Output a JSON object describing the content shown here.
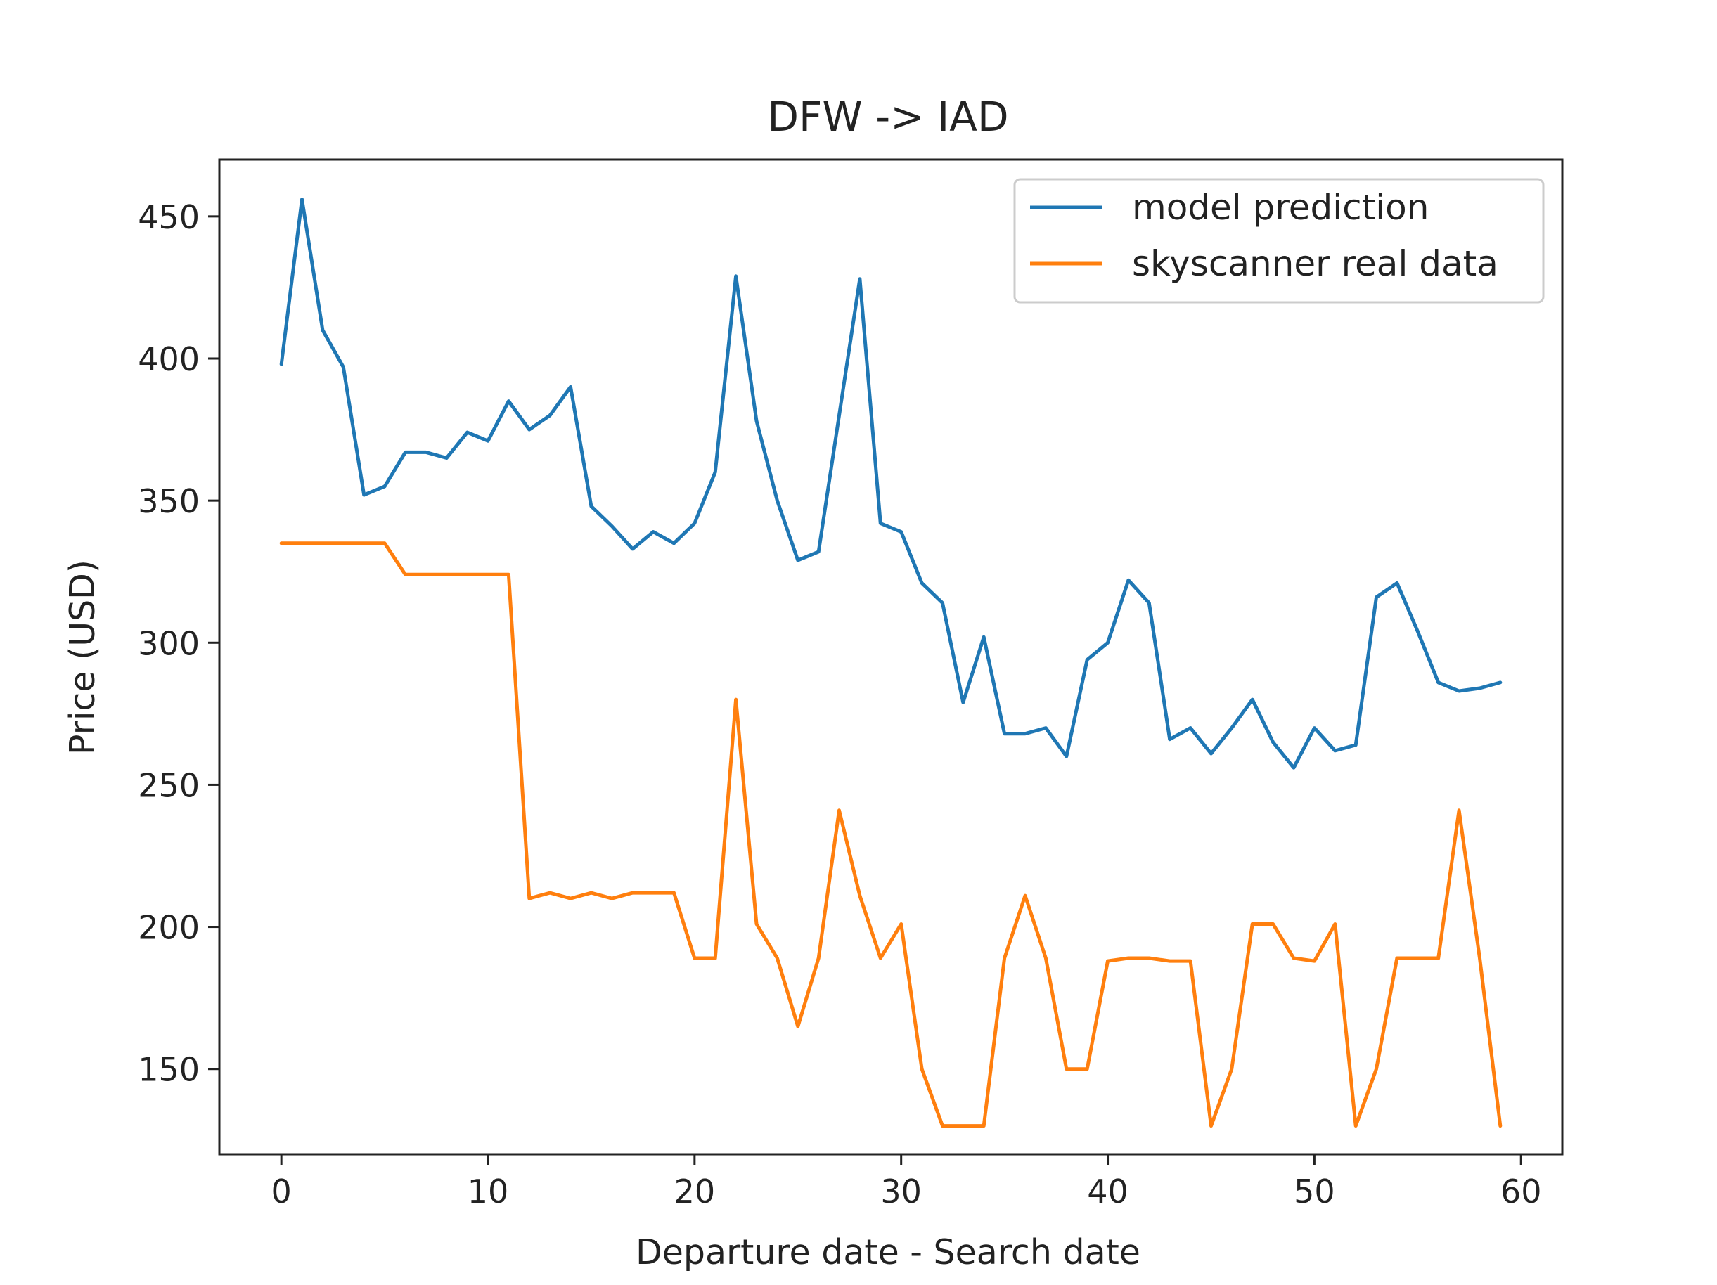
{
  "chart_data": {
    "type": "line",
    "title": "DFW -> IAD",
    "xlabel": "Departure date - Search date",
    "ylabel": "Price (USD)",
    "xlim": [
      -3,
      62
    ],
    "ylim": [
      120,
      470
    ],
    "xticks": [
      0,
      10,
      20,
      30,
      40,
      50,
      60
    ],
    "yticks": [
      150,
      200,
      250,
      300,
      350,
      400,
      450
    ],
    "grid": false,
    "legend_position": "upper right",
    "x": [
      0,
      1,
      2,
      3,
      4,
      5,
      6,
      7,
      8,
      9,
      10,
      11,
      12,
      13,
      14,
      15,
      16,
      17,
      18,
      19,
      20,
      21,
      22,
      23,
      24,
      25,
      26,
      27,
      28,
      29,
      30,
      31,
      32,
      33,
      34,
      35,
      36,
      37,
      38,
      39,
      40,
      41,
      42,
      43,
      44,
      45,
      46,
      47,
      48,
      49,
      50,
      51,
      52,
      53,
      54,
      55,
      56,
      57,
      58,
      59
    ],
    "series": [
      {
        "name": "model prediction",
        "color": "#1f77b4",
        "values": [
          398,
          456,
          410,
          397,
          352,
          355,
          367,
          367,
          365,
          374,
          371,
          385,
          375,
          380,
          390,
          348,
          341,
          333,
          339,
          335,
          342,
          360,
          429,
          378,
          350,
          329,
          332,
          380,
          428,
          342,
          339,
          321,
          314,
          279,
          302,
          268,
          268,
          270,
          260,
          294,
          300,
          322,
          314,
          266,
          270,
          261,
          270,
          280,
          265,
          256,
          270,
          262,
          264,
          316,
          321,
          304,
          286,
          283,
          284,
          286
        ]
      },
      {
        "name": "skyscanner real data",
        "color": "#ff7f0e",
        "values": [
          335,
          335,
          335,
          335,
          335,
          335,
          324,
          324,
          324,
          324,
          324,
          324,
          210,
          212,
          210,
          212,
          210,
          212,
          212,
          212,
          189,
          189,
          280,
          201,
          189,
          165,
          189,
          241,
          211,
          189,
          201,
          150,
          130,
          130,
          130,
          189,
          211,
          189,
          150,
          150,
          188,
          189,
          189,
          188,
          188,
          130,
          150,
          201,
          201,
          189,
          188,
          201,
          130,
          150,
          189,
          189,
          189,
          241,
          189,
          130
        ]
      }
    ]
  }
}
